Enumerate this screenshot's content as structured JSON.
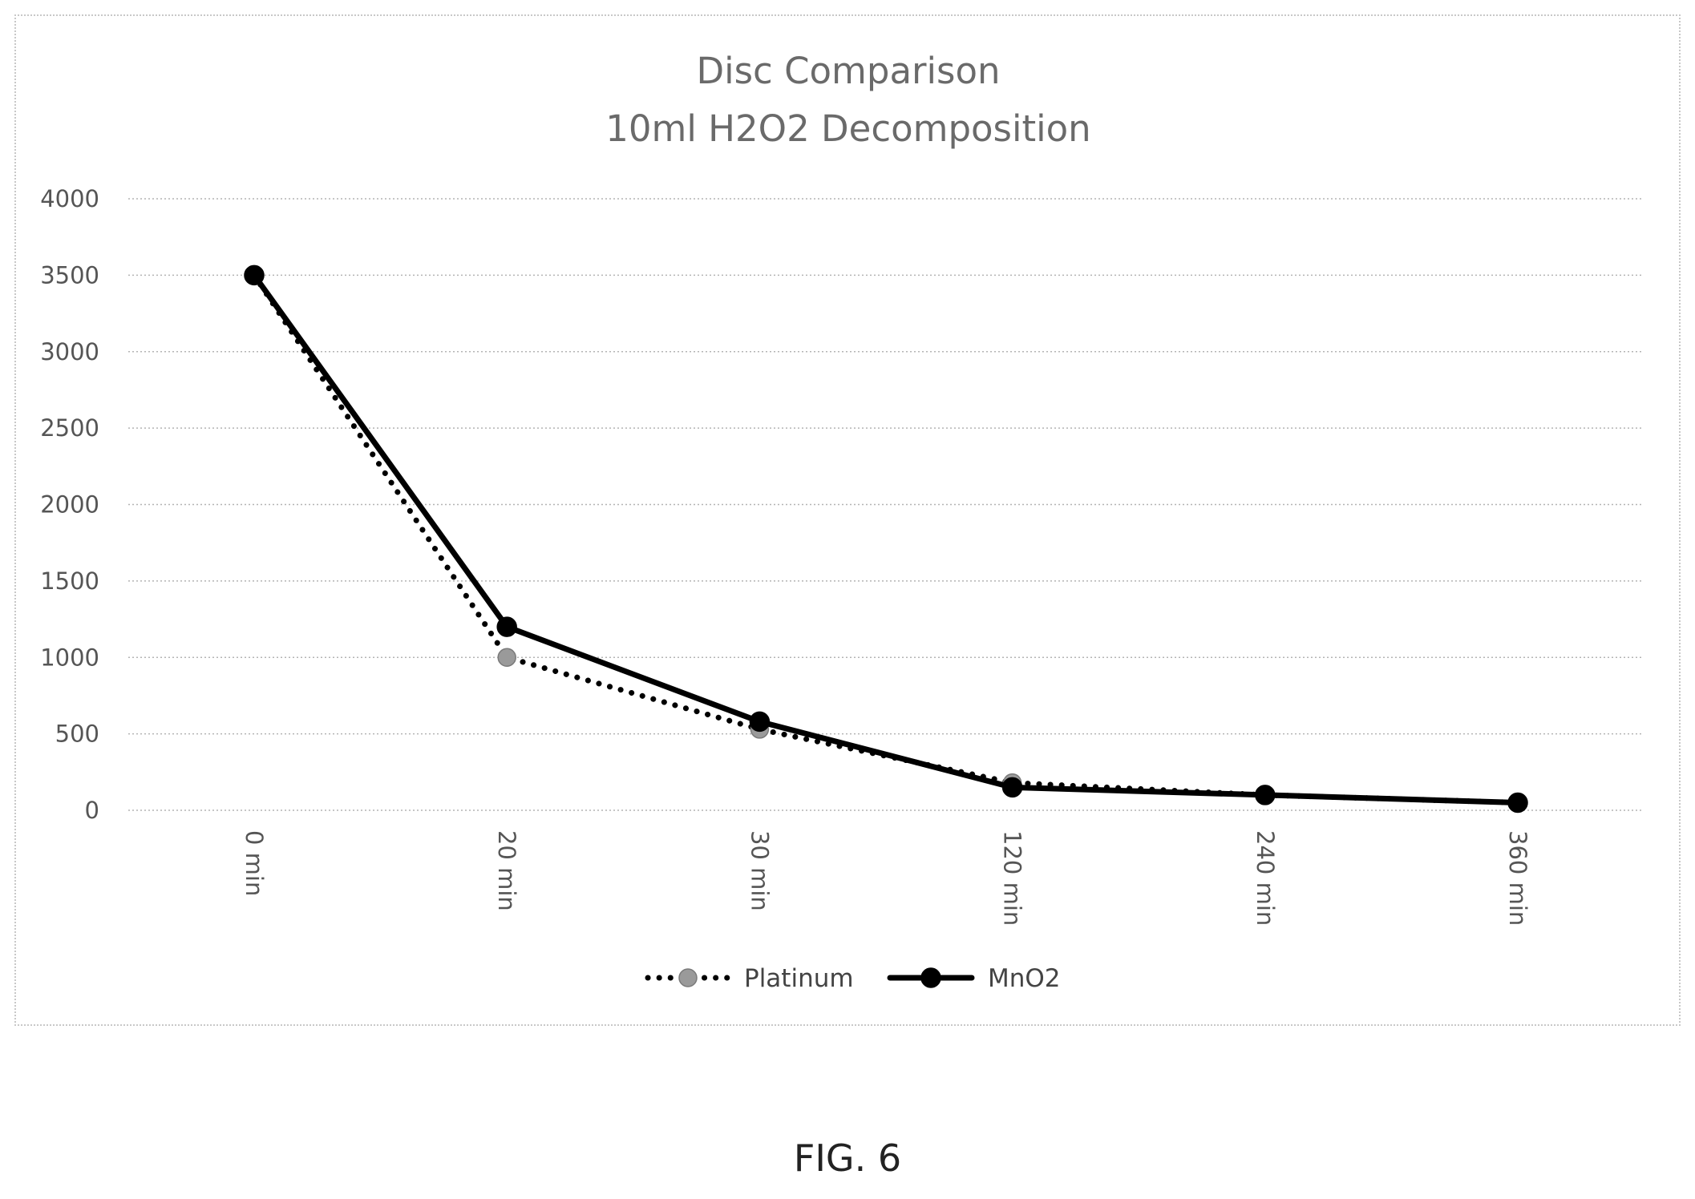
{
  "chart_data": {
    "type": "line",
    "title_lines": [
      "Disc Comparison",
      "10ml H2O2 Decomposition"
    ],
    "categories": [
      "0 min",
      "20 min",
      "30 min",
      "120 min",
      "240 min",
      "360 min"
    ],
    "series": [
      {
        "name": "Platinum",
        "values": [
          3500,
          1000,
          530,
          180,
          100,
          50
        ],
        "color": "#9a9a9a",
        "line_color": "#000000",
        "style": "dotted"
      },
      {
        "name": "MnO2",
        "values": [
          3500,
          1200,
          580,
          150,
          100,
          50
        ],
        "color": "#000000",
        "line_color": "#000000",
        "style": "solid"
      }
    ],
    "ylim": [
      0,
      4000
    ],
    "yticks": [
      "0",
      "500",
      "1000",
      "1500",
      "2000",
      "2500",
      "3000",
      "3500",
      "4000"
    ],
    "grid": true,
    "legend_position": "bottom"
  },
  "caption": "FIG. 6"
}
